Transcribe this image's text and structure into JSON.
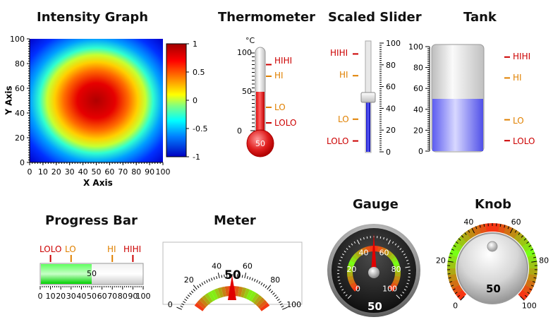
{
  "titles": {
    "intensity": "Intensity Graph",
    "thermometer": "Thermometer",
    "slider": "Scaled Slider",
    "tank": "Tank",
    "progress": "Progress Bar",
    "meter": "Meter",
    "gauge": "Gauge",
    "knob": "Knob"
  },
  "intensity_graph": {
    "x_axis_label": "X Axis",
    "y_axis_label": "Y Axis",
    "x_ticks": [
      "0",
      "10",
      "20",
      "30",
      "40",
      "50",
      "60",
      "70",
      "80",
      "90",
      "100"
    ],
    "y_ticks": [
      "0",
      "20",
      "40",
      "60",
      "80",
      "100"
    ],
    "colorbar_ticks": [
      "1",
      "0.5",
      "0",
      "-0.5",
      "-1"
    ]
  },
  "thermometer": {
    "unit": "°C",
    "ticks": [
      "100",
      "50",
      "0"
    ],
    "value": 50,
    "value_label": "50",
    "limits": {
      "hihi": "HIHI",
      "hi": "HI",
      "lo": "LO",
      "lolo": "LOLO"
    }
  },
  "scaled_slider": {
    "ticks": [
      "100",
      "80",
      "60",
      "40",
      "20",
      "0"
    ],
    "value": 50,
    "limits": {
      "hihi": "HIHI",
      "hi": "HI",
      "lo": "LO",
      "lolo": "LOLO"
    }
  },
  "tank": {
    "ticks": [
      "100",
      "80",
      "60",
      "40",
      "20",
      "0"
    ],
    "value": 50,
    "limits": {
      "hihi": "HIHI",
      "hi": "HI",
      "lo": "LO",
      "lolo": "LOLO"
    }
  },
  "progress_bar": {
    "value": 50,
    "value_label": "50",
    "ticks": [
      "0",
      "10",
      "20",
      "30",
      "40",
      "50",
      "60",
      "70",
      "80",
      "90",
      "100"
    ],
    "limits": {
      "lolo": "LOLO",
      "lo": "LO",
      "hi": "HI",
      "hihi": "HIHI"
    }
  },
  "meter": {
    "value": 50,
    "value_label": "50",
    "ticks": [
      "0",
      "20",
      "40",
      "60",
      "80",
      "100"
    ]
  },
  "gauge": {
    "value": 50,
    "value_label": "50",
    "ticks": [
      "0",
      "20",
      "40",
      "60",
      "80",
      "100"
    ]
  },
  "knob": {
    "value": 50,
    "value_label": "50",
    "ticks": [
      "0",
      "20",
      "40",
      "60",
      "80",
      "100"
    ]
  },
  "colors": {
    "hihi": "#cc0000",
    "hi": "#e08000",
    "lo": "#e08000",
    "lolo": "#cc0000"
  }
}
